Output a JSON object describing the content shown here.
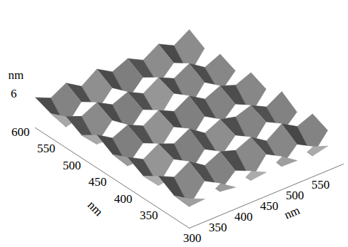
{
  "chart_data": {
    "type": "surface",
    "x_label": "nm",
    "y_label": "nm",
    "z_label": "nm",
    "xlim": [
      300,
      600
    ],
    "ylim": [
      300,
      600
    ],
    "zlim": [
      0,
      6
    ],
    "xticks": [
      300,
      350,
      400,
      450,
      500,
      550
    ],
    "yticks": [
      350,
      400,
      450,
      500,
      550,
      600
    ],
    "zticks": [
      6
    ],
    "color": "#8c8c8c",
    "x": [
      300,
      330,
      360,
      390,
      420,
      450,
      480,
      510,
      540,
      570,
      600
    ],
    "y": [
      300,
      330,
      360,
      390,
      420,
      450,
      480,
      510,
      540,
      570,
      600
    ],
    "z": [
      [
        5.2,
        4.0,
        5.6,
        3.8,
        5.5,
        4.2,
        5.8,
        4.0,
        5.3,
        4.3,
        5.6
      ],
      [
        4.0,
        0.9,
        4.2,
        1.3,
        3.8,
        1.0,
        4.4,
        1.2,
        3.9,
        0.8,
        4.1
      ],
      [
        5.6,
        4.3,
        5.9,
        4.1,
        5.4,
        4.5,
        5.7,
        3.9,
        5.8,
        4.2,
        5.3
      ],
      [
        3.9,
        1.1,
        4.5,
        0.8,
        4.0,
        1.4,
        4.2,
        0.9,
        4.3,
        1.2,
        3.8
      ],
      [
        5.4,
        3.9,
        5.5,
        4.4,
        5.9,
        4.0,
        5.3,
        4.6,
        5.5,
        4.1,
        5.7
      ],
      [
        4.2,
        1.0,
        3.8,
        1.2,
        4.4,
        0.7,
        4.0,
        1.3,
        3.9,
        1.0,
        4.3
      ],
      [
        5.8,
        4.1,
        5.3,
        4.0,
        5.6,
        4.3,
        5.9,
        4.2,
        5.4,
        4.4,
        5.5
      ],
      [
        4.0,
        1.3,
        4.3,
        0.9,
        3.9,
        1.1,
        4.5,
        0.8,
        4.2,
        1.2,
        4.0
      ],
      [
        5.5,
        4.4,
        5.7,
        4.2,
        5.3,
        3.9,
        5.6,
        4.3,
        5.8,
        4.0,
        5.2
      ],
      [
        4.3,
        0.8,
        4.0,
        1.2,
        4.2,
        1.0,
        3.8,
        1.4,
        4.1,
        0.9,
        4.4
      ],
      [
        5.3,
        4.1,
        5.6,
        3.9,
        5.8,
        4.2,
        5.4,
        4.0,
        5.7,
        4.3,
        6.0
      ]
    ]
  }
}
